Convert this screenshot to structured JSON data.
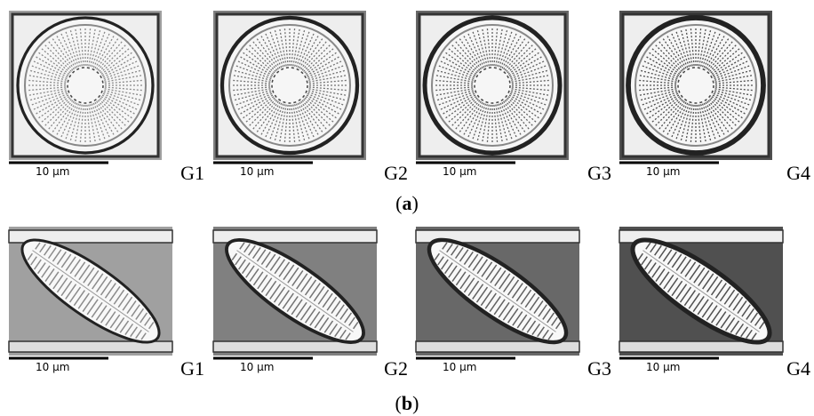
{
  "panels": [
    {
      "caption": [
        "(",
        "a",
        ")"
      ],
      "images": [
        {
          "group": "G1",
          "scale_label": "10 µm"
        },
        {
          "group": "G2",
          "scale_label": "10 µm"
        },
        {
          "group": "G3",
          "scale_label": "10 µm"
        },
        {
          "group": "G4",
          "scale_label": "10 µm"
        }
      ]
    },
    {
      "caption": [
        "(",
        "b",
        ")"
      ],
      "images": [
        {
          "group": "G1",
          "scale_label": "10 µm"
        },
        {
          "group": "G2",
          "scale_label": "10 µm"
        },
        {
          "group": "G3",
          "scale_label": "10 µm"
        },
        {
          "group": "G4",
          "scale_label": "10 µm"
        }
      ]
    }
  ]
}
